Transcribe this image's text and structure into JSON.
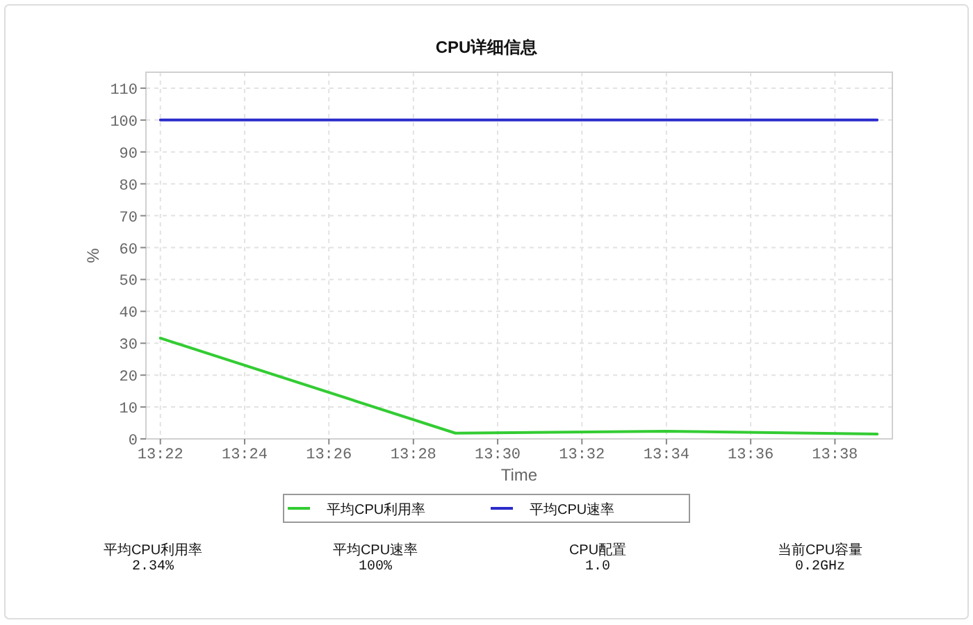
{
  "chart_data": {
    "type": "line",
    "title": "CPU详细信息",
    "xlabel": "Time",
    "ylabel": "%",
    "x": [
      13.3667,
      13.4833,
      13.5667,
      13.65
    ],
    "series": [
      {
        "name": "平均CPU利用率",
        "color": "#33cc33",
        "values": [
          31.6,
          1.8,
          2.4,
          1.5
        ]
      },
      {
        "name": "平均CPU速率",
        "color": "#2b2bcc",
        "values": [
          100,
          100,
          100,
          100
        ]
      }
    ],
    "xlim": [
      13.361,
      13.656
    ],
    "xticks": [
      {
        "value": 13.3667,
        "label": "13:22"
      },
      {
        "value": 13.4,
        "label": "13:24"
      },
      {
        "value": 13.4333,
        "label": "13:26"
      },
      {
        "value": 13.4667,
        "label": "13:28"
      },
      {
        "value": 13.5,
        "label": "13:30"
      },
      {
        "value": 13.5333,
        "label": "13:32"
      },
      {
        "value": 13.5667,
        "label": "13:34"
      },
      {
        "value": 13.6,
        "label": "13:36"
      },
      {
        "value": 13.6333,
        "label": "13:38"
      }
    ],
    "ylim": [
      0,
      115
    ],
    "yticks": [
      0,
      10,
      20,
      30,
      40,
      50,
      60,
      70,
      80,
      90,
      100,
      110
    ],
    "grid": true,
    "legend": "bottom",
    "annotations": [
      "平均CPU利用率",
      "2.34%",
      "平均CPU速率",
      "100%",
      "CPU配置",
      "1.0",
      "当前CPU容量",
      "0.2GHz"
    ]
  }
}
